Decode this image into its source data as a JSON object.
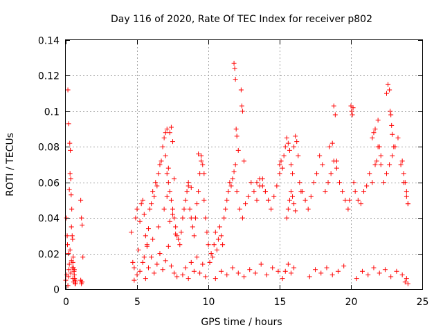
{
  "chart_data": {
    "type": "scatter",
    "title": "Day 116 of 2020, Rate Of TEC Index for receiver p802",
    "xlabel": "GPS time / hours",
    "ylabel": "ROTI / TECUs",
    "xlim": [
      0,
      25
    ],
    "ylim": [
      0,
      0.14
    ],
    "grid": true,
    "marker": "+",
    "color": "#ff0000",
    "x_ticks": [
      "0",
      "5",
      "10",
      "15",
      "20",
      "25"
    ],
    "y_ticks": [
      "0",
      "0.02",
      "0.04",
      "0.06",
      "0.08",
      "0.1",
      "0.12",
      "0.14"
    ],
    "series": [
      {
        "x": [
          0.0,
          0.05,
          0.1,
          0.15,
          0.2,
          0.25,
          0.3,
          0.35,
          0.4,
          0.45,
          0.5,
          0.55,
          0.6,
          0.65,
          0.7,
          0.08,
          0.12,
          0.18,
          0.22,
          0.28,
          0.32,
          0.38,
          0.42,
          0.48,
          0.52,
          0.58,
          0.62,
          0.68,
          0.15,
          0.2,
          0.25,
          0.3,
          0.35,
          0.4,
          0.45,
          0.5,
          0.55,
          0.6,
          0.65,
          1.05,
          1.1,
          1.15,
          1.2,
          1.05,
          1.1,
          1.15,
          1.1,
          4.6,
          4.7,
          4.8,
          4.9,
          5.0,
          5.1,
          5.2,
          5.3,
          5.4,
          5.5,
          5.6,
          5.7,
          5.8,
          5.9,
          6.0,
          6.1,
          6.2,
          6.3,
          6.4,
          6.5,
          6.6,
          6.7,
          6.8,
          6.9,
          7.0,
          7.1,
          7.2,
          7.3,
          7.4,
          7.5,
          7.6,
          7.7,
          7.8,
          7.9,
          4.8,
          5.0,
          5.2,
          5.4,
          5.6,
          5.8,
          6.0,
          6.2,
          6.4,
          6.6,
          6.8,
          7.0,
          7.2,
          7.4,
          7.6,
          7.8,
          5.5,
          5.7,
          6.1,
          6.5,
          6.9,
          7.1,
          7.3,
          7.5,
          7.7,
          7.0,
          7.1,
          7.2,
          7.3,
          7.4,
          7.5,
          7.6,
          8.0,
          8.1,
          8.2,
          8.3,
          8.4,
          8.5,
          8.6,
          8.7,
          8.8,
          8.9,
          9.0,
          9.1,
          9.2,
          9.3,
          9.4,
          9.5,
          9.6,
          9.7,
          9.8,
          9.9,
          10.0,
          8.2,
          8.4,
          8.6,
          8.8,
          9.0,
          9.2,
          9.4,
          9.6,
          9.8,
          8.6,
          8.8,
          9.3,
          9.5,
          9.7,
          10.1,
          10.2,
          10.3,
          10.4,
          10.5,
          10.6,
          10.7,
          10.8,
          10.9,
          11.0,
          11.1,
          11.2,
          11.3,
          11.4,
          11.5,
          11.6,
          11.7,
          11.8,
          11.9,
          12.0,
          10.5,
          10.9,
          11.3,
          11.7,
          12.1,
          11.8,
          11.85,
          11.9,
          11.95,
          12.0,
          12.1,
          12.3,
          12.35,
          12.4,
          12.5,
          12.2,
          12.4,
          12.6,
          12.8,
          13.0,
          13.2,
          13.4,
          13.6,
          13.8,
          14.0,
          14.2,
          14.4,
          14.6,
          14.8,
          15.0,
          12.5,
          12.9,
          13.3,
          13.7,
          14.1,
          14.5,
          14.9,
          13.4,
          13.6,
          13.8,
          14.0,
          14.2,
          15.0,
          15.1,
          15.2,
          15.3,
          15.4,
          15.5,
          15.6,
          15.7,
          15.8,
          15.9,
          16.0,
          16.1,
          16.2,
          16.3,
          16.4,
          16.5,
          15.2,
          15.4,
          15.6,
          15.8,
          16.0,
          15.5,
          15.6,
          15.7,
          15.8,
          15.9,
          16.0,
          16.1,
          16.6,
          16.8,
          17.0,
          17.2,
          17.4,
          17.6,
          17.8,
          18.0,
          18.2,
          18.4,
          18.6,
          18.8,
          19.0,
          19.2,
          19.4,
          19.6,
          19.8,
          17.1,
          17.5,
          17.9,
          18.3,
          18.7,
          19.1,
          19.5,
          18.5,
          18.7,
          18.8,
          18.9,
          19.0,
          19.9,
          20.0,
          20.05,
          20.1,
          20.15,
          20.2,
          20.3,
          20.5,
          20.7,
          20.9,
          21.1,
          21.3,
          21.5,
          21.7,
          21.9,
          22.1,
          22.3,
          22.5,
          22.7,
          22.9,
          23.1,
          23.3,
          23.5,
          23.7,
          23.9,
          24.0,
          20.4,
          20.8,
          21.2,
          21.6,
          22.0,
          22.4,
          22.8,
          23.2,
          23.6,
          21.5,
          21.6,
          21.7,
          21.8,
          21.9,
          22.0,
          22.1,
          22.5,
          22.6,
          22.7,
          22.75,
          22.8,
          22.85,
          22.9,
          23.0,
          23.6,
          23.7,
          23.8,
          23.9,
          24.0,
          23.8,
          23.9,
          24.0
        ],
        "y": [
          0.005,
          0.04,
          0.03,
          0.112,
          0.093,
          0.056,
          0.065,
          0.062,
          0.035,
          0.03,
          0.015,
          0.012,
          0.008,
          0.005,
          0.004,
          0.008,
          0.025,
          0.02,
          0.011,
          0.082,
          0.078,
          0.053,
          0.045,
          0.028,
          0.018,
          0.01,
          0.006,
          0.003,
          0.002,
          0.007,
          0.014,
          0.022,
          0.009,
          0.016,
          0.012,
          0.006,
          0.004,
          0.011,
          0.003,
          0.05,
          0.04,
          0.036,
          0.018,
          0.005,
          0.004,
          0.004,
          0.003,
          0.032,
          0.015,
          0.012,
          0.04,
          0.045,
          0.022,
          0.038,
          0.048,
          0.05,
          0.042,
          0.03,
          0.025,
          0.034,
          0.045,
          0.048,
          0.055,
          0.052,
          0.06,
          0.058,
          0.065,
          0.07,
          0.072,
          0.08,
          0.085,
          0.088,
          0.09,
          0.06,
          0.055,
          0.05,
          0.045,
          0.04,
          0.035,
          0.03,
          0.028,
          0.005,
          0.008,
          0.01,
          0.015,
          0.006,
          0.012,
          0.018,
          0.009,
          0.014,
          0.02,
          0.011,
          0.016,
          0.024,
          0.013,
          0.009,
          0.007,
          0.018,
          0.024,
          0.028,
          0.035,
          0.045,
          0.052,
          0.038,
          0.042,
          0.031,
          0.075,
          0.065,
          0.068,
          0.088,
          0.091,
          0.083,
          0.062,
          0.025,
          0.032,
          0.04,
          0.045,
          0.05,
          0.055,
          0.058,
          0.045,
          0.04,
          0.035,
          0.03,
          0.04,
          0.048,
          0.055,
          0.065,
          0.075,
          0.07,
          0.05,
          0.04,
          0.032,
          0.025,
          0.008,
          0.012,
          0.006,
          0.015,
          0.01,
          0.018,
          0.009,
          0.014,
          0.007,
          0.06,
          0.057,
          0.076,
          0.072,
          0.065,
          0.015,
          0.02,
          0.018,
          0.025,
          0.032,
          0.022,
          0.028,
          0.035,
          0.03,
          0.025,
          0.04,
          0.045,
          0.05,
          0.055,
          0.06,
          0.058,
          0.062,
          0.066,
          0.07,
          0.055,
          0.006,
          0.01,
          0.008,
          0.012,
          0.009,
          0.127,
          0.124,
          0.118,
          0.09,
          0.086,
          0.078,
          0.112,
          0.103,
          0.1,
          0.072,
          0.045,
          0.04,
          0.048,
          0.052,
          0.06,
          0.055,
          0.05,
          0.058,
          0.062,
          0.055,
          0.05,
          0.045,
          0.052,
          0.058,
          0.065,
          0.007,
          0.011,
          0.009,
          0.014,
          0.008,
          0.012,
          0.01,
          0.06,
          0.062,
          0.058,
          0.055,
          0.05,
          0.07,
          0.072,
          0.068,
          0.075,
          0.08,
          0.085,
          0.082,
          0.078,
          0.07,
          0.065,
          0.08,
          0.086,
          0.083,
          0.075,
          0.06,
          0.055,
          0.006,
          0.01,
          0.014,
          0.009,
          0.012,
          0.04,
          0.045,
          0.05,
          0.055,
          0.052,
          0.048,
          0.044,
          0.055,
          0.05,
          0.045,
          0.052,
          0.06,
          0.065,
          0.075,
          0.07,
          0.055,
          0.06,
          0.065,
          0.072,
          0.068,
          0.06,
          0.055,
          0.05,
          0.045,
          0.007,
          0.011,
          0.009,
          0.012,
          0.008,
          0.01,
          0.013,
          0.08,
          0.082,
          0.103,
          0.098,
          0.072,
          0.05,
          0.103,
          0.1,
          0.098,
          0.102,
          0.06,
          0.055,
          0.05,
          0.048,
          0.055,
          0.058,
          0.065,
          0.06,
          0.07,
          0.08,
          0.075,
          0.06,
          0.065,
          0.07,
          0.075,
          0.08,
          0.085,
          0.07,
          0.06,
          0.052,
          0.048,
          0.006,
          0.01,
          0.008,
          0.012,
          0.009,
          0.011,
          0.007,
          0.01,
          0.008,
          0.085,
          0.088,
          0.09,
          0.072,
          0.095,
          0.08,
          0.07,
          0.11,
          0.115,
          0.112,
          0.1,
          0.098,
          0.092,
          0.087,
          0.08,
          0.072,
          0.065,
          0.06,
          0.055,
          0.048,
          0.004,
          0.006,
          0.003
        ]
      }
    ]
  }
}
